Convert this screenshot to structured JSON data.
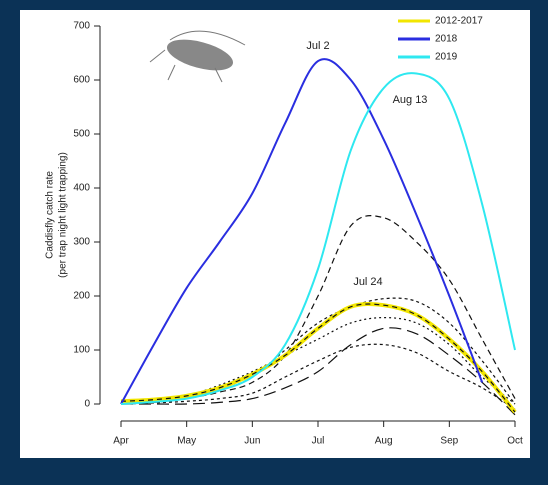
{
  "chart_data": {
    "type": "line",
    "y_label_lines": [
      "Caddisfly catch rate",
      "(per trap night light trapping)"
    ],
    "annotations": [
      "Jul 2",
      "Aug 13",
      "Jul 24"
    ],
    "x": [
      0,
      0.5,
      1,
      1.5,
      2,
      2.5,
      3,
      3.5,
      4,
      4.5,
      5,
      5.5,
      6
    ],
    "xlim": [
      0,
      6
    ],
    "xticks": [
      {
        "value": 0,
        "label": "Apr"
      },
      {
        "value": 1,
        "label": "May"
      },
      {
        "value": 2,
        "label": "Jun"
      },
      {
        "value": 3,
        "label": "Jul"
      },
      {
        "value": 4,
        "label": "Aug"
      },
      {
        "value": 5,
        "label": "Sep"
      },
      {
        "value": 6,
        "label": "Oct"
      }
    ],
    "ylim": [
      -30,
      720
    ],
    "yticks": [
      0,
      100,
      200,
      300,
      400,
      500,
      600,
      700
    ],
    "series": [
      {
        "color": "#111111",
        "dash": "6 4",
        "values": [
          0,
          3,
          10,
          22,
          40,
          90,
          200,
          330,
          345,
          300,
          230,
          120,
          10
        ]
      },
      {
        "color": "#111111",
        "dash": "3 3",
        "values": [
          0,
          4,
          10,
          25,
          50,
          100,
          150,
          180,
          195,
          190,
          150,
          80,
          0
        ]
      },
      {
        "color": "#111111",
        "dash": "3 3",
        "values": [
          0,
          2,
          5,
          10,
          20,
          50,
          80,
          105,
          110,
          95,
          60,
          30,
          -10
        ]
      },
      {
        "color": "#111111",
        "dash": "12 6",
        "values": [
          0,
          0,
          0,
          3,
          10,
          30,
          60,
          110,
          140,
          130,
          90,
          40,
          -20
        ]
      },
      {
        "color": "#111111",
        "dash": "2 3",
        "values": [
          0,
          6,
          15,
          35,
          60,
          90,
          120,
          150,
          160,
          150,
          110,
          50,
          0
        ]
      },
      {
        "name": "2012-2017",
        "color": "#f2e600",
        "width": 4,
        "values": [
          5,
          8,
          15,
          30,
          55,
          90,
          140,
          180,
          183,
          165,
          120,
          60,
          -15
        ]
      },
      {
        "name": "2018",
        "color": "#2a2ee0",
        "width": 2,
        "values": [
          0,
          110,
          215,
          300,
          390,
          520,
          635,
          600,
          490,
          350,
          200,
          40,
          null
        ]
      },
      {
        "name": "2019",
        "color": "#2ee8f0",
        "width": 2,
        "values": [
          0,
          4,
          10,
          25,
          50,
          110,
          250,
          470,
          585,
          612,
          565,
          370,
          100
        ]
      }
    ]
  }
}
